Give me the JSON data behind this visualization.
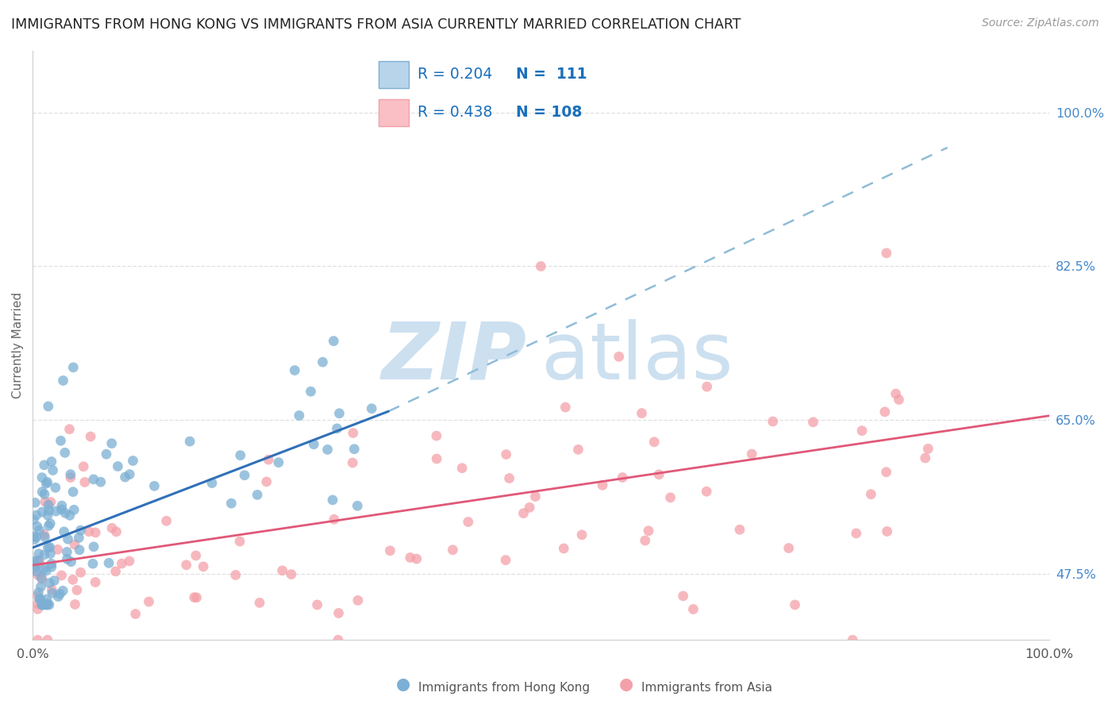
{
  "title": "IMMIGRANTS FROM HONG KONG VS IMMIGRANTS FROM ASIA CURRENTLY MARRIED CORRELATION CHART",
  "source": "Source: ZipAtlas.com",
  "ylabel": "Currently Married",
  "xmin": 0.0,
  "xmax": 100.0,
  "ymin": 40.0,
  "ymax": 107.0,
  "yticks": [
    47.5,
    65.0,
    82.5,
    100.0
  ],
  "hk_color": "#7bafd4",
  "asia_color": "#f4a0a8",
  "hk_line_color": "#3070b8",
  "asia_line_color": "#e05878",
  "dashed_line_color": "#90bcd8",
  "watermark_zip_color": "#cce0f0",
  "watermark_atlas_color": "#cce0f0",
  "background_color": "#ffffff",
  "grid_color": "#e0e0e0",
  "ytick_color": "#4488cc",
  "xtick_color": "#555555",
  "spine_color": "#cccccc",
  "title_color": "#222222",
  "source_color": "#999999",
  "legend_edge_color": "#cccccc",
  "ylabel_color": "#666666",
  "bottom_legend_color": "#555555",
  "hk_line_x0": 0.0,
  "hk_line_y0": 50.5,
  "hk_line_x1": 35.0,
  "hk_line_y1": 66.0,
  "asia_line_x0": 0.0,
  "asia_line_y0": 48.5,
  "asia_line_x1": 100.0,
  "asia_line_y1": 65.5,
  "dash_line_x0": 35.0,
  "dash_line_y0": 66.0,
  "dash_line_x1": 90.0,
  "dash_line_y1": 96.0
}
